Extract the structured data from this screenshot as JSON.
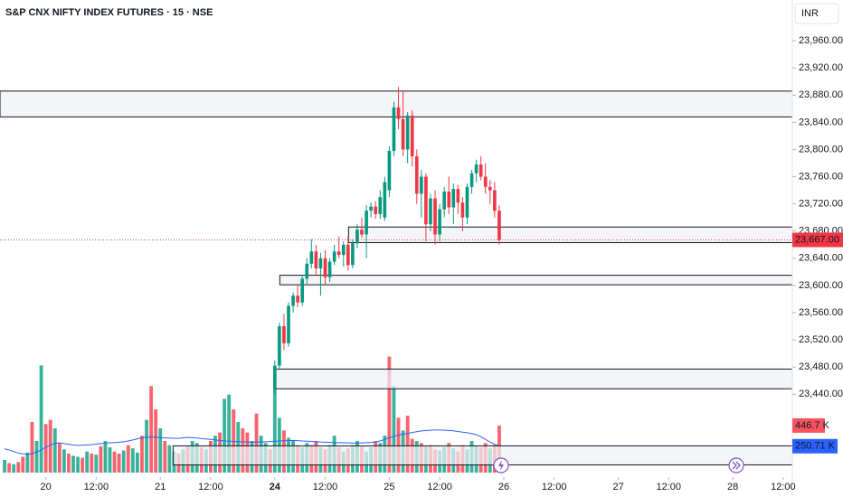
{
  "chart_data": {
    "type": "candlestick",
    "title": "S&P CNX NIFTY INDEX FUTURES · 15 · NSE",
    "currency": "INR",
    "xlim": [
      -1,
      172
    ],
    "xticks": [
      {
        "value": 9,
        "label": "20"
      },
      {
        "value": 20,
        "label": "12:00"
      },
      {
        "value": 34,
        "label": "21"
      },
      {
        "value": 45,
        "label": "12:00"
      },
      {
        "value": 59,
        "label": "24",
        "bold": true
      },
      {
        "value": 70,
        "label": "12:00"
      },
      {
        "value": 84,
        "label": "25"
      },
      {
        "value": 95,
        "label": "12:00"
      },
      {
        "value": 109,
        "label": "26"
      },
      {
        "value": 120,
        "label": "12:00"
      },
      {
        "value": 134,
        "label": "27"
      },
      {
        "value": 145,
        "label": "12:00"
      },
      {
        "value": 159,
        "label": "28"
      },
      {
        "value": 170,
        "label": "12:00"
      }
    ],
    "ylim": [
      23318,
      24020
    ],
    "yticks": [
      {
        "value": 23960,
        "label": "23,960.00"
      },
      {
        "value": 23920,
        "label": "23,920.00"
      },
      {
        "value": 23880,
        "label": "23,880.00"
      },
      {
        "value": 23840,
        "label": "23,840.00"
      },
      {
        "value": 23800,
        "label": "23,800.00"
      },
      {
        "value": 23760,
        "label": "23,760.00"
      },
      {
        "value": 23720,
        "label": "23,720.00"
      },
      {
        "value": 23680,
        "label": "23,680.00"
      },
      {
        "value": 23640,
        "label": "23,640.00"
      },
      {
        "value": 23600,
        "label": "23,600.00"
      },
      {
        "value": 23560,
        "label": "23,560.00"
      },
      {
        "value": 23520,
        "label": "23,520.00"
      },
      {
        "value": 23480,
        "label": "23,480.00"
      },
      {
        "value": 23440,
        "label": "23,440.00"
      }
    ],
    "up_color": "#089981",
    "down_color": "#f23645",
    "open": [
      null,
      null,
      null,
      null,
      null,
      null,
      null,
      null,
      null,
      null,
      null,
      null,
      null,
      null,
      null,
      null,
      null,
      null,
      null,
      null,
      null,
      null,
      null,
      null,
      null,
      null,
      null,
      null,
      null,
      null,
      null,
      null,
      null,
      null,
      null,
      null,
      null,
      null,
      null,
      null,
      null,
      null,
      null,
      null,
      null,
      null,
      null,
      null,
      null,
      null,
      null,
      null,
      null,
      null,
      null,
      null,
      null,
      null,
      null,
      23448,
      23482,
      23540,
      23515,
      23570,
      23585,
      23575,
      23610,
      23632,
      23650,
      23625,
      23640,
      23612,
      23635,
      23650,
      23645,
      23660,
      23630,
      23662,
      23682,
      23675,
      23710,
      23716,
      23705,
      23700,
      23740,
      23798,
      23862,
      23845,
      23800,
      23850,
      23790,
      23735,
      23760,
      23690,
      23728,
      23675,
      23712,
      23738,
      23715,
      23742,
      23722,
      23700,
      23745,
      23765,
      23778,
      23760,
      23745,
      23740,
      23710
    ],
    "high": [
      null,
      null,
      null,
      null,
      null,
      null,
      null,
      null,
      null,
      null,
      null,
      null,
      null,
      null,
      null,
      null,
      null,
      null,
      null,
      null,
      null,
      null,
      null,
      null,
      null,
      null,
      null,
      null,
      null,
      null,
      null,
      null,
      null,
      null,
      null,
      null,
      null,
      null,
      null,
      null,
      null,
      null,
      null,
      null,
      null,
      null,
      null,
      null,
      null,
      null,
      null,
      null,
      null,
      null,
      null,
      null,
      null,
      null,
      null,
      23490,
      23545,
      23558,
      23575,
      23590,
      23600,
      23615,
      23640,
      23668,
      23660,
      23648,
      23652,
      23640,
      23660,
      23672,
      23665,
      23672,
      23668,
      23690,
      23700,
      23718,
      23722,
      23724,
      23740,
      23760,
      23805,
      23870,
      23892,
      23885,
      23855,
      23858,
      23800,
      23770,
      23765,
      23735,
      23740,
      23720,
      23745,
      23760,
      23750,
      23748,
      23730,
      23750,
      23770,
      23785,
      23790,
      23780,
      23755,
      23752,
      23718
    ],
    "low": [
      null,
      null,
      null,
      null,
      null,
      null,
      null,
      null,
      null,
      null,
      null,
      null,
      null,
      null,
      null,
      null,
      null,
      null,
      null,
      null,
      null,
      null,
      null,
      null,
      null,
      null,
      null,
      null,
      null,
      null,
      null,
      null,
      null,
      null,
      null,
      null,
      null,
      null,
      null,
      null,
      null,
      null,
      null,
      null,
      null,
      null,
      null,
      null,
      null,
      null,
      null,
      null,
      null,
      null,
      null,
      null,
      null,
      null,
      null,
      23440,
      23478,
      23505,
      23510,
      23560,
      23568,
      23570,
      23600,
      23625,
      23615,
      23585,
      23600,
      23605,
      23630,
      23640,
      23628,
      23622,
      23625,
      23655,
      23670,
      23640,
      23700,
      23698,
      23698,
      23695,
      23730,
      23790,
      23830,
      23790,
      23780,
      23775,
      23720,
      23700,
      23665,
      23680,
      23660,
      23665,
      23700,
      23705,
      23690,
      23705,
      23680,
      23690,
      23735,
      23752,
      23755,
      23735,
      23720,
      23700,
      23660
    ],
    "close": [
      null,
      null,
      null,
      null,
      null,
      null,
      null,
      null,
      null,
      null,
      null,
      null,
      null,
      null,
      null,
      null,
      null,
      null,
      null,
      null,
      null,
      null,
      null,
      null,
      null,
      null,
      null,
      null,
      null,
      null,
      null,
      null,
      null,
      null,
      null,
      null,
      null,
      null,
      null,
      null,
      null,
      null,
      null,
      null,
      null,
      null,
      null,
      null,
      null,
      null,
      null,
      null,
      null,
      null,
      null,
      null,
      null,
      null,
      null,
      23482,
      23540,
      23515,
      23570,
      23585,
      23575,
      23610,
      23632,
      23650,
      23625,
      23640,
      23612,
      23635,
      23650,
      23645,
      23660,
      23630,
      23662,
      23682,
      23675,
      23710,
      23716,
      23705,
      23730,
      23752,
      23798,
      23862,
      23845,
      23800,
      23850,
      23790,
      23735,
      23760,
      23690,
      23728,
      23675,
      23712,
      23738,
      23715,
      23742,
      23722,
      23700,
      23745,
      23765,
      23778,
      23760,
      23745,
      23740,
      23710,
      23667
    ],
    "close_last_label": "23,667.00",
    "zones": [
      {
        "from": -1,
        "top": 23886,
        "bottom": 23848
      },
      {
        "from": 75.1,
        "top": 23686,
        "bottom": 23663
      },
      {
        "from": 60.1,
        "top": 23615,
        "bottom": 23601
      },
      {
        "from": 58.9,
        "top": 23477,
        "bottom": 23448
      },
      {
        "from": 36.8,
        "top": 23364,
        "bottom": 23336
      }
    ],
    "zone_color": "#f0f1f5",
    "volume_ylim": [
      0,
      1200
    ],
    "volume_up_color": "#22ab94",
    "volume_down_color": "#f7525f",
    "volume": [
      120,
      90,
      80,
      100,
      150,
      190,
      480,
      300,
      1017,
      460,
      500,
      420,
      280,
      220,
      180,
      160,
      150,
      140,
      200,
      180,
      170,
      250,
      300,
      240,
      200,
      180,
      210,
      260,
      230,
      190,
      350,
      500,
      820,
      600,
      420,
      300,
      260,
      200,
      180,
      220,
      250,
      300,
      280,
      240,
      220,
      300,
      350,
      380,
      700,
      740,
      600,
      480,
      420,
      380,
      300,
      560,
      350,
      280,
      220,
      800,
      520,
      400,
      330,
      300,
      260,
      240,
      280,
      260,
      300,
      240,
      220,
      260,
      350,
      240,
      200,
      230,
      260,
      300,
      250,
      200,
      240,
      300,
      280,
      350,
      1100,
      820,
      520,
      400,
      540,
      320,
      300,
      280,
      250,
      260,
      220,
      210,
      240,
      280,
      230,
      200,
      260,
      220,
      300,
      250,
      240,
      280,
      230,
      260,
      446.7
    ],
    "volume_up": [
      true,
      false,
      true,
      false,
      false,
      true,
      false,
      true,
      true,
      false,
      false,
      true,
      false,
      true,
      false,
      true,
      true,
      false,
      true,
      false,
      true,
      false,
      true,
      true,
      false,
      false,
      true,
      false,
      true,
      true,
      false,
      true,
      false,
      false,
      true,
      false,
      true,
      true,
      false,
      true,
      false,
      true,
      true,
      false,
      true,
      false,
      true,
      false,
      true,
      true,
      false,
      true,
      false,
      false,
      true,
      false,
      true,
      true,
      false,
      true,
      true,
      false,
      true,
      true,
      false,
      true,
      true,
      false,
      false,
      true,
      false,
      true,
      true,
      false,
      true,
      false,
      true,
      true,
      false,
      true,
      true,
      false,
      true,
      true,
      false,
      true,
      false,
      true,
      false,
      false,
      true,
      false,
      true,
      false,
      false,
      true,
      true,
      false,
      true,
      false,
      false,
      true,
      true,
      true,
      false,
      false,
      true,
      false,
      false
    ],
    "volume_last_label": "446.7 K",
    "volume_ma_color": "#2962ff",
    "volume_ma": [
      225,
      215,
      200,
      185,
      178,
      175,
      180,
      195,
      215,
      240,
      260,
      278,
      282,
      275,
      268,
      262,
      258,
      260,
      262,
      265,
      270,
      275,
      280,
      283,
      285,
      288,
      292,
      300,
      310,
      320,
      330,
      335,
      338,
      336,
      332,
      330,
      328,
      326,
      325,
      330,
      334,
      332,
      328,
      322,
      318,
      315,
      310,
      305,
      300,
      298,
      296,
      294,
      292,
      290,
      289,
      288,
      290,
      292,
      295,
      298,
      300,
      302,
      303,
      305,
      303,
      300,
      298,
      296,
      293,
      290,
      288,
      287,
      285,
      284,
      283,
      282,
      281,
      280,
      282,
      284,
      286,
      290,
      300,
      315,
      330,
      345,
      355,
      365,
      372,
      380,
      388,
      395,
      400,
      402,
      404,
      404,
      403,
      400,
      396,
      390,
      384,
      378,
      370,
      360,
      340,
      315,
      290,
      268,
      250.71
    ],
    "volume_ma_last_label": "250.71 K"
  }
}
